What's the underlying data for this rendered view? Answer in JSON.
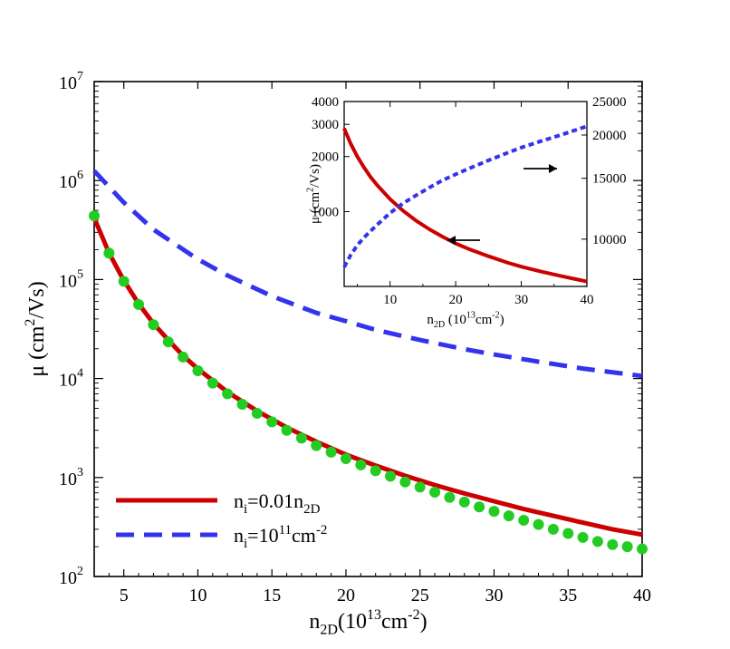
{
  "chart_data": [
    {
      "type": "line",
      "name": "main",
      "xlabel": {
        "base": "n",
        "sub": "2D",
        "open": "(10",
        "sup1": "13",
        "unit": "cm",
        "sup2": "-2",
        "close": ")"
      },
      "ylabel": {
        "main": "μ (cm",
        "sup": "2",
        "rest": "/Vs)"
      },
      "xlim": [
        3,
        40
      ],
      "ylim": [
        100,
        10000000
      ],
      "yscale": "log",
      "xticks": [
        5,
        10,
        15,
        20,
        25,
        30,
        35,
        40
      ],
      "yticks": [
        {
          "value": 100,
          "base": "10",
          "exp": "2"
        },
        {
          "value": 1000,
          "base": "10",
          "exp": "3"
        },
        {
          "value": 10000,
          "base": "10",
          "exp": "4"
        },
        {
          "value": 100000,
          "base": "10",
          "exp": "5"
        },
        {
          "value": 1000000,
          "base": "10",
          "exp": "6"
        },
        {
          "value": 10000000,
          "base": "10",
          "exp": "7"
        }
      ],
      "series": [
        {
          "name": "ni_001",
          "color": "#cc0000",
          "style": "solid",
          "x": [
            3,
            4,
            5,
            6,
            7,
            8,
            9,
            10,
            12,
            14,
            16,
            18,
            20,
            22,
            24,
            26,
            28,
            30,
            32,
            34,
            36,
            38,
            40
          ],
          "y": [
            420000,
            185000,
            98000,
            57000,
            36000,
            24500,
            17000,
            12500,
            7300,
            4700,
            3200,
            2300,
            1700,
            1320,
            1040,
            840,
            690,
            575,
            480,
            410,
            350,
            300,
            265
          ]
        },
        {
          "name": "ni_1e11",
          "color": "#3333ee",
          "style": "dashed",
          "x": [
            3,
            5,
            7,
            10,
            12,
            15,
            18,
            20,
            22,
            25,
            28,
            30,
            33,
            36,
            40
          ],
          "y": [
            1250000,
            600000,
            320000,
            160000,
            110000,
            68000,
            46000,
            38000,
            31000,
            24500,
            19800,
            17500,
            14800,
            12600,
            10600
          ]
        },
        {
          "name": "data_points",
          "color": "#22cc22",
          "style": "markers",
          "x": [
            3,
            4,
            5,
            6,
            7,
            8,
            9,
            10,
            11,
            12,
            13,
            14,
            15,
            16,
            17,
            18,
            19,
            20,
            21,
            22,
            23,
            24,
            25,
            26,
            27,
            28,
            29,
            30,
            31,
            32,
            33,
            34,
            35,
            36,
            37,
            38,
            39,
            40
          ],
          "y": [
            440000,
            185000,
            96000,
            56000,
            35000,
            23500,
            16500,
            12000,
            9000,
            7000,
            5500,
            4450,
            3650,
            3000,
            2500,
            2100,
            1800,
            1550,
            1340,
            1170,
            1030,
            900,
            800,
            710,
            630,
            565,
            505,
            455,
            410,
            370,
            335,
            300,
            272,
            248,
            226,
            210,
            200,
            190
          ]
        }
      ],
      "legend": [
        {
          "series": "ni_001",
          "base": "n",
          "sub1": "i",
          "mid": "=0.01n",
          "sub2": "2D",
          "sup": "",
          "tail": ""
        },
        {
          "series": "ni_1e11",
          "base": "n",
          "sub1": "i",
          "mid": "=10",
          "sup": "11",
          "tail": "cm",
          "sup2": "-2"
        }
      ],
      "legend_position": "bottom-left"
    },
    {
      "type": "line",
      "name": "inset",
      "xlabel": {
        "base": "n",
        "sub": "2D",
        "open": " (10",
        "sup1": "13",
        "unit": "cm",
        "sup2": "-2",
        "close": ")"
      },
      "ylabel": {
        "main": "μ (cm",
        "sup": "2",
        "rest": "/Vs)"
      },
      "xlim": [
        3,
        40
      ],
      "xticks": [
        10,
        20,
        30,
        40
      ],
      "y_left": {
        "scale": "log",
        "lim": [
          390,
          4000
        ],
        "ticks": [
          1000,
          2000,
          3000,
          4000
        ]
      },
      "y_right": {
        "scale": "log",
        "lim": [
          7300,
          25000
        ],
        "ticks": [
          10000,
          15000,
          20000,
          25000
        ]
      },
      "series": [
        {
          "name": "inset_red",
          "axis": "left",
          "color": "#cc0000",
          "style": "solid",
          "x": [
            3,
            4,
            5,
            6,
            7,
            8,
            10,
            12,
            14,
            16,
            18,
            20,
            22,
            25,
            28,
            30,
            33,
            36,
            40
          ],
          "y": [
            2850,
            2350,
            2000,
            1750,
            1550,
            1400,
            1170,
            1010,
            890,
            800,
            730,
            670,
            625,
            570,
            525,
            500,
            470,
            445,
            415
          ]
        },
        {
          "name": "inset_blue",
          "axis": "right",
          "color": "#3333ee",
          "style": "dotted",
          "x": [
            3,
            4,
            5,
            6,
            8,
            10,
            12,
            14,
            16,
            18,
            20,
            22,
            25,
            28,
            30,
            33,
            36,
            40
          ],
          "y": [
            8300,
            9000,
            9600,
            10100,
            11000,
            11900,
            12700,
            13400,
            14100,
            14800,
            15400,
            16000,
            16900,
            17800,
            18400,
            19200,
            20000,
            21200
          ]
        }
      ],
      "arrows": [
        {
          "direction": "left",
          "points_to_axis": "left"
        },
        {
          "direction": "right",
          "points_to_axis": "right"
        }
      ]
    }
  ]
}
